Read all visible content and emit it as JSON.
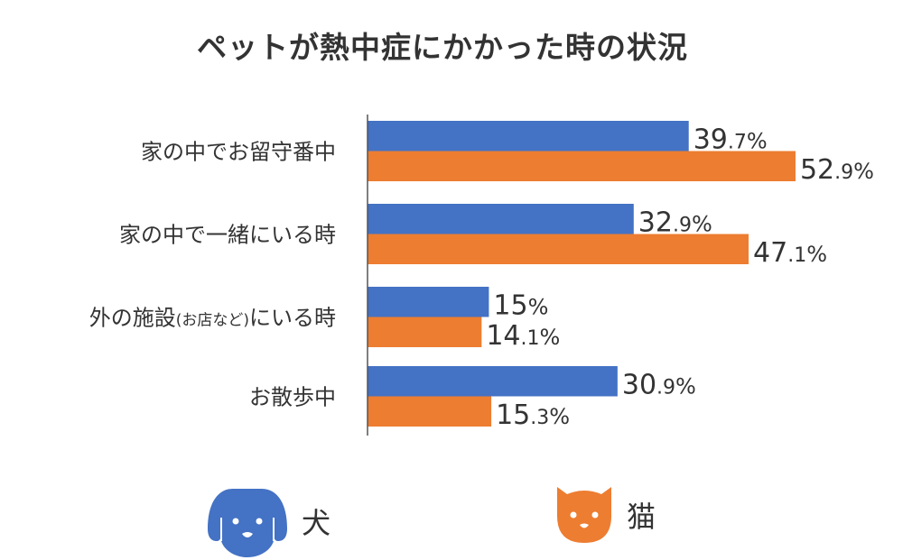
{
  "chart_data": {
    "type": "bar",
    "orientation": "horizontal",
    "title": "ペットが熱中症にかかった時の状況",
    "categories": [
      "家の中でお留守番中",
      "家の中で一緒にいる時",
      "外の施設(お店など)にいる時",
      "お散歩中"
    ],
    "series": [
      {
        "name": "犬",
        "color": "#4472C4",
        "values": [
          39.7,
          32.9,
          15,
          30.9
        ],
        "labels": [
          "39.7%",
          "32.9%",
          "15%",
          "30.9%"
        ]
      },
      {
        "name": "猫",
        "color": "#ED7D31",
        "values": [
          52.9,
          47.1,
          14.1,
          15.3
        ],
        "labels": [
          "52.9%",
          "47.1%",
          "14.1%",
          "15.3%"
        ]
      }
    ],
    "xlim": [
      0,
      60
    ],
    "grid": false,
    "legend": "bottom",
    "legend_icons": [
      "dog-face-icon",
      "cat-face-icon"
    ]
  }
}
